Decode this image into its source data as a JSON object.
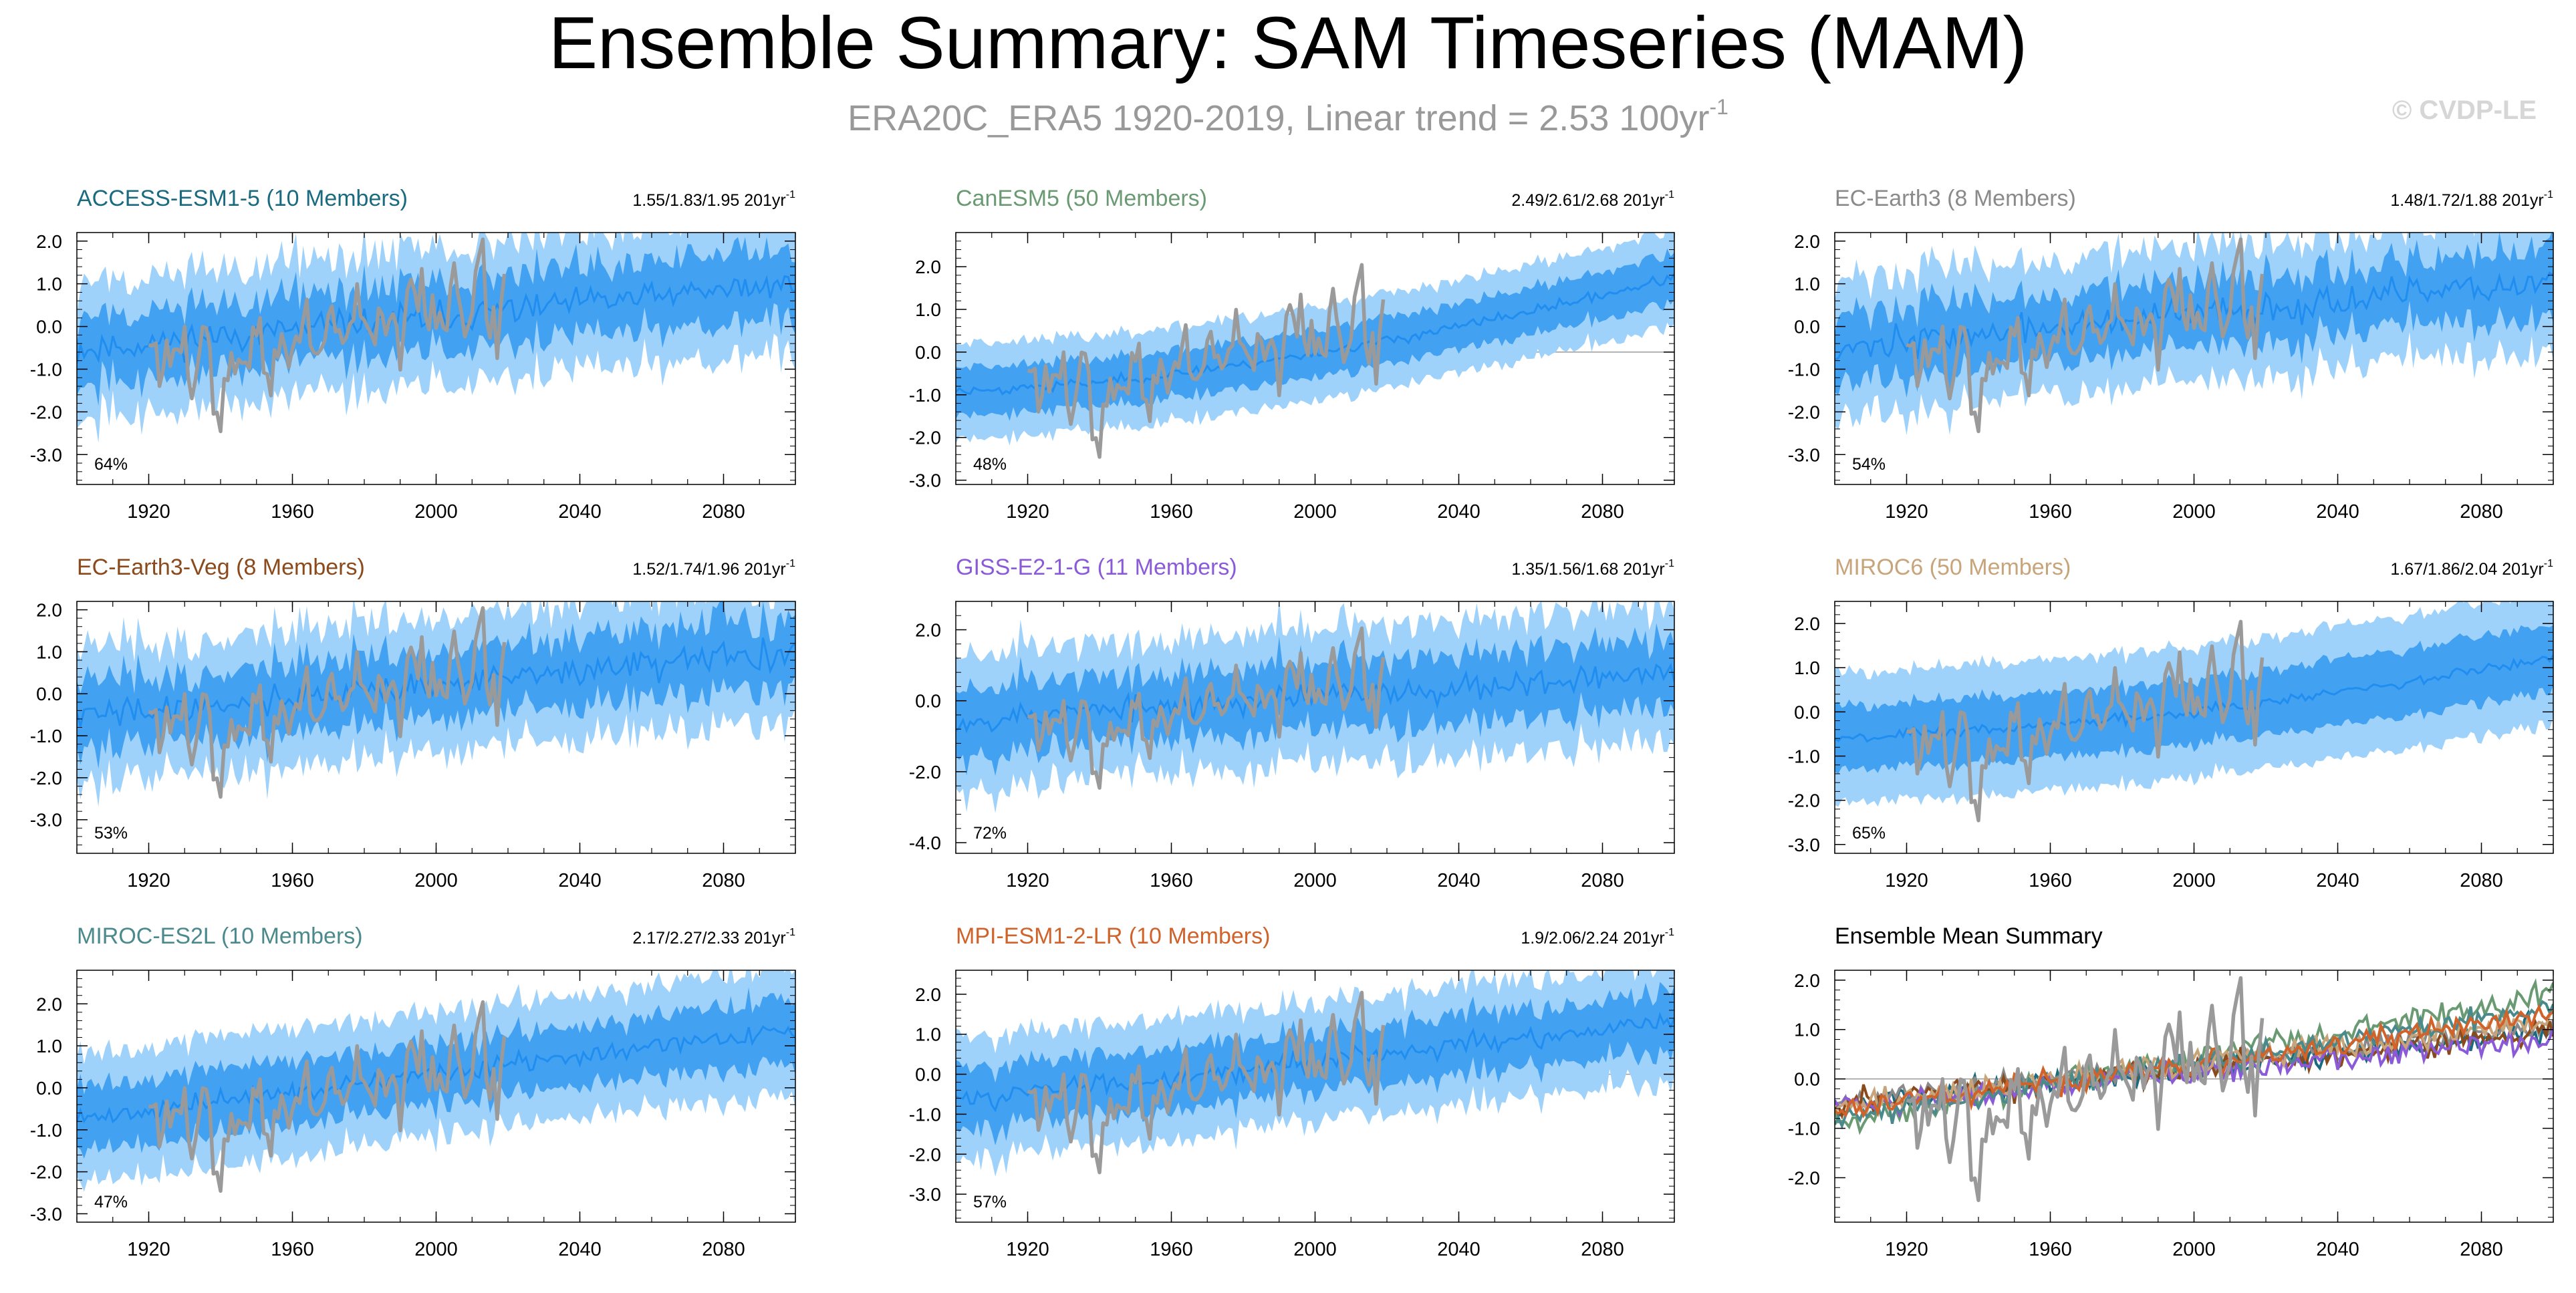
{
  "title": "Ensemble Summary: SAM Timeseries (MAM)",
  "subtitle": {
    "text": "ERA20C_ERA5 1920-2019, Linear trend = 2.53 100yr",
    "sup": "-1"
  },
  "watermark": "© CVDP-LE",
  "colors": {
    "obs": "#9a9a9a",
    "spread_light": "#9fd2fb",
    "spread_dark": "#3399ee",
    "mean": "#1f8ef0",
    "title": "#000000",
    "subtitle": "#999999",
    "watermark": "#d6d6d6"
  },
  "chart_data": [
    {
      "type": "line",
      "model": "ACCESS-ESM1-5 (10 Members)",
      "model_color": "#1a6a80",
      "trend": "1.55/1.83/1.95 201yr",
      "trend_sup": "-1",
      "percent": "64%",
      "ylim": [
        -3.7,
        2.2
      ],
      "yticks": [
        -3.0,
        -2.0,
        -1.0,
        0.0,
        1.0,
        2.0
      ],
      "ytick_labels": [
        "-3.0",
        "-2.0",
        "-1.0",
        "0.0",
        "1.0",
        "2.0"
      ],
      "xlim": [
        1900,
        2100
      ],
      "xticks": [
        1920,
        1960,
        2000,
        2040,
        2080
      ],
      "ens_mean_start": -0.55,
      "ens_mean_end": 1.0,
      "spread_width": 1.6,
      "noise": 0.55,
      "seed": 11
    },
    {
      "type": "line",
      "model": "CanESM5 (50 Members)",
      "model_color": "#6a9a72",
      "trend": "2.49/2.61/2.68 201yr",
      "trend_sup": "-1",
      "percent": "48%",
      "ylim": [
        -3.1,
        2.8
      ],
      "yticks": [
        -3.0,
        -2.0,
        -1.0,
        0.0,
        1.0,
        2.0
      ],
      "ytick_labels": [
        "-3.0",
        "-2.0",
        "-1.0",
        "0.0",
        "1.0",
        "2.0"
      ],
      "xlim": [
        1900,
        2100
      ],
      "xticks": [
        1920,
        1960,
        2000,
        2040,
        2080
      ],
      "ens_mean_start": -0.9,
      "ens_mean_end": 1.75,
      "spread_width": 1.1,
      "noise": 0.18,
      "seed": 23
    },
    {
      "type": "line",
      "model": "EC-Earth3 (8 Members)",
      "model_color": "#8a8a8a",
      "trend": "1.48/1.72/1.88 201yr",
      "trend_sup": "-1",
      "percent": "54%",
      "ylim": [
        -3.7,
        2.2
      ],
      "yticks": [
        -3.0,
        -2.0,
        -1.0,
        0.0,
        1.0,
        2.0
      ],
      "ytick_labels": [
        "-3.0",
        "-2.0",
        "-1.0",
        "0.0",
        "1.0",
        "2.0"
      ],
      "xlim": [
        1900,
        2100
      ],
      "xticks": [
        1920,
        1960,
        2000,
        2040,
        2080
      ],
      "ens_mean_start": -0.5,
      "ens_mean_end": 1.05,
      "spread_width": 1.6,
      "noise": 0.55,
      "seed": 37
    },
    {
      "type": "line",
      "model": "EC-Earth3-Veg (8 Members)",
      "model_color": "#8a4a1c",
      "trend": "1.52/1.74/1.96 201yr",
      "trend_sup": "-1",
      "percent": "53%",
      "ylim": [
        -3.8,
        2.2
      ],
      "yticks": [
        -3.0,
        -2.0,
        -1.0,
        0.0,
        1.0,
        2.0
      ],
      "ytick_labels": [
        "-3.0",
        "-2.0",
        "-1.0",
        "0.0",
        "1.0",
        "2.0"
      ],
      "xlim": [
        1900,
        2100
      ],
      "xticks": [
        1920,
        1960,
        2000,
        2040,
        2080
      ],
      "ens_mean_start": -0.55,
      "ens_mean_end": 1.0,
      "spread_width": 1.6,
      "noise": 0.55,
      "seed": 41
    },
    {
      "type": "line",
      "model": "GISS-E2-1-G (11 Members)",
      "model_color": "#8a5ad8",
      "trend": "1.35/1.56/1.68 201yr",
      "trend_sup": "-1",
      "percent": "72%",
      "ylim": [
        -4.3,
        2.8
      ],
      "yticks": [
        -4.0,
        -2.0,
        0.0,
        2.0
      ],
      "ytick_labels": [
        "-4.0",
        "-2.0",
        "0.0",
        "2.0"
      ],
      "xlim": [
        1900,
        2100
      ],
      "xticks": [
        1920,
        1960,
        2000,
        2040,
        2080
      ],
      "ens_mean_start": -0.55,
      "ens_mean_end": 0.8,
      "spread_width": 1.9,
      "noise": 0.6,
      "seed": 53
    },
    {
      "type": "line",
      "model": "MIROC6 (50 Members)",
      "model_color": "#c8a47a",
      "trend": "1.67/1.86/2.04 201yr",
      "trend_sup": "-1",
      "percent": "65%",
      "ylim": [
        -3.2,
        2.5
      ],
      "yticks": [
        -3.0,
        -2.0,
        -1.0,
        0.0,
        1.0,
        2.0
      ],
      "ytick_labels": [
        "-3.0",
        "-2.0",
        "-1.0",
        "0.0",
        "1.0",
        "2.0"
      ],
      "xlim": [
        1900,
        2100
      ],
      "xticks": [
        1920,
        1960,
        2000,
        2040,
        2080
      ],
      "ens_mean_start": -0.55,
      "ens_mean_end": 1.2,
      "spread_width": 1.5,
      "noise": 0.2,
      "seed": 67
    },
    {
      "type": "line",
      "model": "MIROC-ES2L (10 Members)",
      "model_color": "#4a8a8c",
      "trend": "2.17/2.27/2.33 201yr",
      "trend_sup": "-1",
      "percent": "47%",
      "ylim": [
        -3.2,
        2.8
      ],
      "yticks": [
        -3.0,
        -2.0,
        -1.0,
        0.0,
        1.0,
        2.0
      ],
      "ytick_labels": [
        "-3.0",
        "-2.0",
        "-1.0",
        "0.0",
        "1.0",
        "2.0"
      ],
      "xlim": [
        1900,
        2100
      ],
      "xticks": [
        1920,
        1960,
        2000,
        2040,
        2080
      ],
      "ens_mean_start": -0.75,
      "ens_mean_end": 1.4,
      "spread_width": 1.5,
      "noise": 0.35,
      "seed": 71
    },
    {
      "type": "line",
      "model": "MPI-ESM1-2-LR (10 Members)",
      "model_color": "#d0622a",
      "trend": "1.9/2.06/2.24 201yr",
      "trend_sup": "-1",
      "percent": "57%",
      "ylim": [
        -3.7,
        2.6
      ],
      "yticks": [
        -3.0,
        -2.0,
        -1.0,
        0.0,
        1.0,
        2.0
      ],
      "ytick_labels": [
        "-3.0",
        "-2.0",
        "-1.0",
        "0.0",
        "1.0",
        "2.0"
      ],
      "xlim": [
        1900,
        2100
      ],
      "xticks": [
        1920,
        1960,
        2000,
        2040,
        2080
      ],
      "ens_mean_start": -0.65,
      "ens_mean_end": 1.3,
      "spread_width": 1.5,
      "noise": 0.4,
      "seed": 83
    },
    {
      "type": "line",
      "summary": true,
      "model": "Ensemble Mean Summary",
      "model_color": "#000000",
      "trend": "",
      "trend_sup": "",
      "percent": "",
      "ylim": [
        -2.9,
        2.2
      ],
      "yticks": [
        -2.0,
        -1.0,
        0.0,
        1.0,
        2.0
      ],
      "ytick_labels": [
        "-2.0",
        "-1.0",
        "0.0",
        "1.0",
        "2.0"
      ],
      "xlim": [
        1900,
        2100
      ],
      "xticks": [
        1920,
        1960,
        2000,
        2040,
        2080
      ],
      "series": [
        {
          "name": "ACCESS-ESM1-5",
          "color": "#1a6a80",
          "start": -0.55,
          "end": 1.0
        },
        {
          "name": "CanESM5",
          "color": "#6a9a72",
          "start": -0.9,
          "end": 1.75
        },
        {
          "name": "EC-Earth3",
          "color": "#8a8a8a",
          "start": -0.5,
          "end": 1.05
        },
        {
          "name": "EC-Earth3-Veg",
          "color": "#8a4a1c",
          "start": -0.55,
          "end": 1.0
        },
        {
          "name": "GISS-E2-1-G",
          "color": "#8a5ad8",
          "start": -0.55,
          "end": 0.8
        },
        {
          "name": "MIROC6",
          "color": "#c8a47a",
          "start": -0.55,
          "end": 1.2
        },
        {
          "name": "MIROC-ES2L",
          "color": "#4a8a8c",
          "start": -0.75,
          "end": 1.4
        },
        {
          "name": "MPI-ESM1-2-LR",
          "color": "#d0622a",
          "start": -0.65,
          "end": 1.3
        }
      ]
    }
  ]
}
